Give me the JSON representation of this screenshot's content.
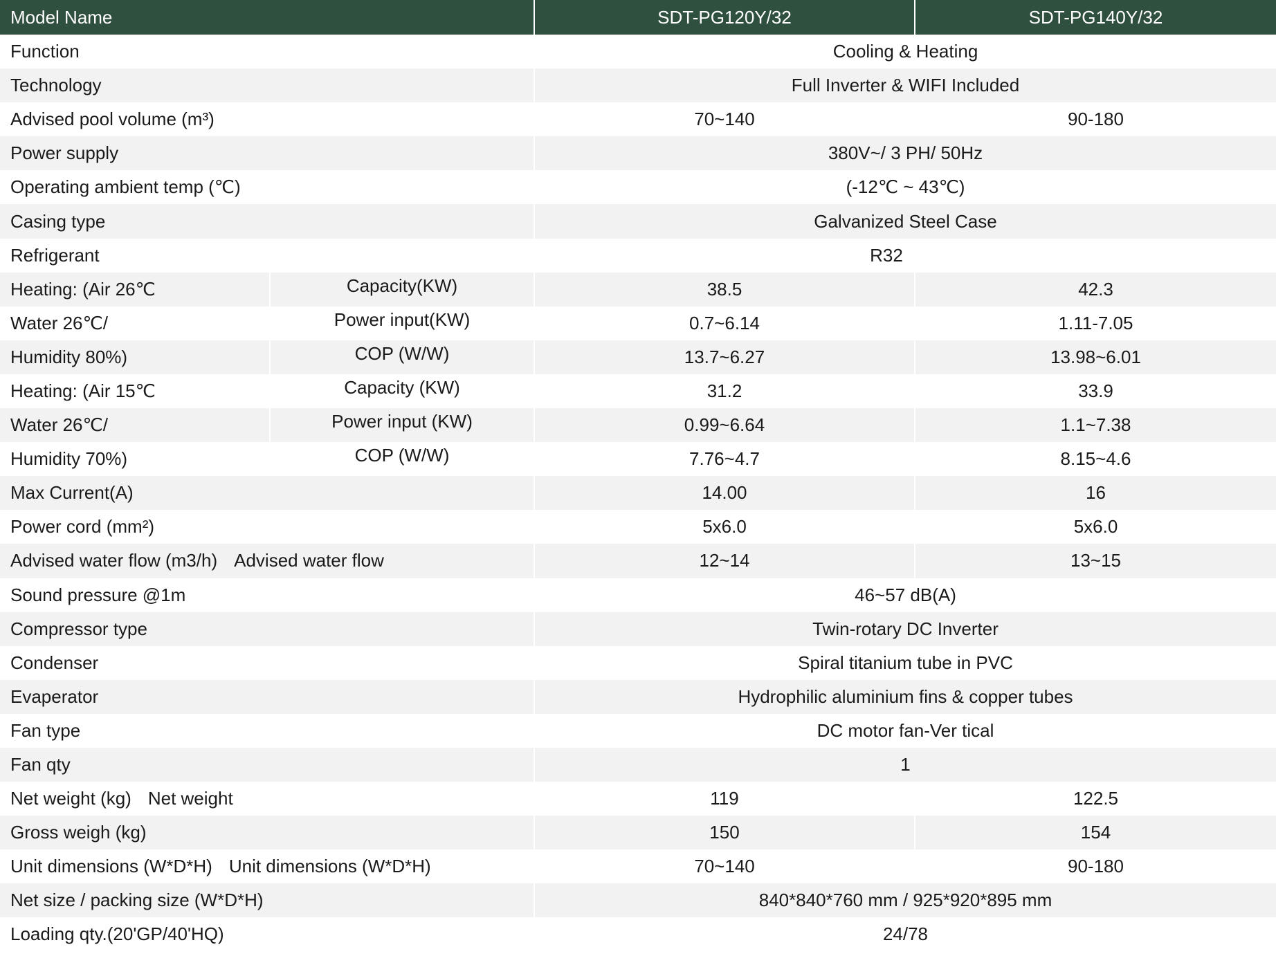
{
  "header": {
    "label": "Model Name",
    "models": [
      "SDT-PG120Y/32",
      "SDT-PG140Y/32"
    ]
  },
  "rows": {
    "function": {
      "label": "Function",
      "value": "Cooling & Heating"
    },
    "technology": {
      "label": "Technology",
      "value": "Full Inverter & WIFI Included"
    },
    "pool_volume": {
      "label": "Advised pool volume  (m³)",
      "values": [
        "70~140",
        "90-180"
      ]
    },
    "power_supply": {
      "label": "Power supply",
      "value": "380V~/ 3 PH/ 50Hz"
    },
    "ambient_temp": {
      "label": "Operating ambient temp  (℃)",
      "value": "(-12℃ ~ 43℃)"
    },
    "casing": {
      "label": "Casing type",
      "value": "Galvanized Steel Case"
    },
    "refrigerant": {
      "label": "Refrigerant",
      "value": "R32"
    },
    "heating_a": {
      "labels": [
        "Heating: (Air 26℃",
        "Water 26℃/",
        "Humidity 80%)"
      ],
      "sub": [
        "Capacity(KW)",
        "Power input(KW)",
        "COP (W/W)"
      ],
      "values": [
        [
          "38.5",
          "42.3"
        ],
        [
          "0.7~6.14",
          "1.11-7.05"
        ],
        [
          "13.7~6.27",
          "13.98~6.01"
        ]
      ]
    },
    "heating_b": {
      "labels": [
        "Heating: (Air 15℃",
        "Water 26℃/",
        "Humidity 70%)"
      ],
      "sub": [
        "Capacity  (KW)",
        "Power input  (KW)",
        "COP (W/W)"
      ],
      "values": [
        [
          "31.2",
          "33.9"
        ],
        [
          "0.99~6.64",
          "1.1~7.38"
        ],
        [
          "7.76~4.7",
          "8.15~4.6"
        ]
      ]
    },
    "max_current": {
      "label": "Max Current(A)",
      "values": [
        "14.00",
        "16"
      ]
    },
    "power_cord": {
      "label": "Power cord (mm²)",
      "values": [
        "5x6.0",
        "5x6.0"
      ]
    },
    "water_flow": {
      "label": "Advised water flow (m3/h)",
      "extra": "Advised water flow",
      "values": [
        "12~14",
        "13~15"
      ]
    },
    "sound": {
      "label": "Sound pressure @1m",
      "value": "46~57 dB(A)"
    },
    "compressor": {
      "label": "Compressor type",
      "value": "Twin-rotary DC Inverter"
    },
    "condenser": {
      "label": "Condenser",
      "value": "Spiral titanium tube in PVC"
    },
    "evaporator": {
      "label": "Evaperator",
      "value": "Hydrophilic aluminium fins & copper tubes"
    },
    "fan_type": {
      "label": "Fan type",
      "value": "DC motor fan-Ver tical"
    },
    "fan_qty": {
      "label": "Fan qty",
      "value": "1"
    },
    "net_weight": {
      "label": "Net weight  (kg)",
      "extra": "Net weight",
      "values": [
        "119",
        "122.5"
      ]
    },
    "gross_weight": {
      "label": "Gross weigh  (kg)",
      "values": [
        "150",
        "154"
      ]
    },
    "unit_dim": {
      "label": "Unit dimensions (W*D*H)",
      "extra": "Unit dimensions (W*D*H)",
      "values": [
        "70~140",
        "90-180"
      ]
    },
    "net_size": {
      "label": "Net size / packing size (W*D*H)",
      "value": "840*840*760 mm / 925*920*895 mm"
    },
    "loading": {
      "label": "Loading qty.(20'GP/40'HQ)",
      "value": "24/78"
    }
  },
  "colors": {
    "header_bg": "#2f4f3f",
    "header_text": "#ffffff",
    "row_alt_bg": "#f2f2f2"
  }
}
